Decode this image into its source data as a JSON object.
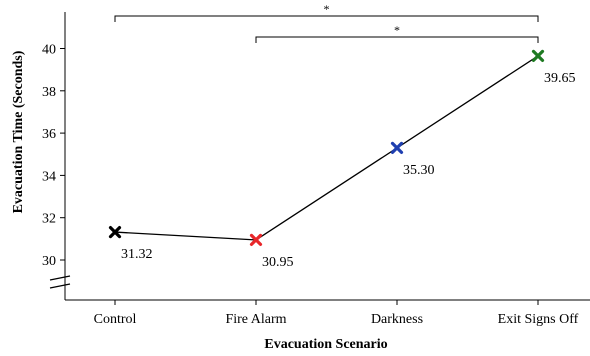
{
  "chart_data": {
    "type": "line",
    "title": "",
    "xlabel": "Evacuation Scenario",
    "ylabel": "Evacuation Time (Seconds)",
    "categories": [
      "Control",
      "Fire Alarm",
      "Darkness",
      "Exit Signs Off"
    ],
    "values": [
      31.32,
      30.95,
      35.3,
      39.65
    ],
    "value_labels": [
      "31.32",
      "30.95",
      "35.30",
      "39.65"
    ],
    "marker": "x",
    "marker_colors": [
      "#000000",
      "#e8262a",
      "#1f3fb0",
      "#1e7a22"
    ],
    "line_color": "#000000",
    "yticks": [
      30,
      32,
      34,
      36,
      38,
      40
    ],
    "ylim": [
      29.5,
      41.7
    ],
    "y_axis_break": true,
    "grid": false,
    "legend": "none",
    "significance": [
      {
        "from": 0,
        "to": 3,
        "label": "*"
      },
      {
        "from": 1,
        "to": 3,
        "label": "*"
      }
    ]
  }
}
